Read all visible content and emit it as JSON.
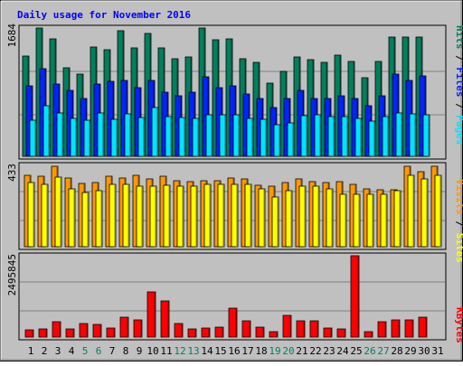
{
  "chart_data": {
    "type": "bar",
    "title": "Daily usage for November 2016",
    "days": [
      "1",
      "2",
      "3",
      "4",
      "5",
      "6",
      "7",
      "8",
      "9",
      "10",
      "11",
      "12",
      "13",
      "14",
      "15",
      "16",
      "17",
      "18",
      "19",
      "20",
      "21",
      "22",
      "23",
      "24",
      "25",
      "26",
      "27",
      "28",
      "29",
      "30",
      "31"
    ],
    "weekend_days": [
      "5",
      "6",
      "12",
      "13",
      "19",
      "20",
      "26",
      "27"
    ],
    "panels": [
      {
        "id": "top",
        "ytick_label": "1684",
        "ymax": 1684,
        "series": [
          {
            "name": "Hits",
            "color": "#00805C",
            "values": [
              1320,
              1684,
              1540,
              1160,
              1080,
              1440,
              1400,
              1650,
              1420,
              1610,
              1420,
              1280,
              1300,
              1680,
              1530,
              1540,
              1280,
              1230,
              960,
              1110,
              1300,
              1270,
              1230,
              1330,
              1250,
              1030,
              1250,
              1570,
              1560,
              1560,
              null
            ]
          },
          {
            "name": "Files",
            "color": "#0024FF",
            "values": [
              920,
              1150,
              950,
              860,
              760,
              950,
              980,
              1000,
              900,
              1000,
              840,
              800,
              840,
              1040,
              900,
              920,
              820,
              760,
              640,
              760,
              870,
              760,
              760,
              800,
              760,
              660,
              800,
              1080,
              1000,
              1060,
              null
            ]
          },
          {
            "name": "Pages",
            "color": "#00E4FF",
            "values": [
              480,
              660,
              570,
              500,
              470,
              570,
              490,
              560,
              510,
              640,
              520,
              510,
              500,
              550,
              550,
              540,
              500,
              490,
              410,
              440,
              530,
              550,
              520,
              520,
              500,
              460,
              520,
              570,
              560,
              540,
              null
            ]
          }
        ]
      },
      {
        "id": "middle",
        "ytick_label": "433",
        "ymax": 433,
        "series": [
          {
            "name": "Visits",
            "color": "#FF9900",
            "values": [
              380,
              375,
              430,
              365,
              335,
              340,
              375,
              365,
              380,
              360,
              375,
              350,
              345,
              350,
              350,
              365,
              360,
              325,
              320,
              340,
              360,
              345,
              340,
              345,
              330,
              310,
              305,
              303,
              430,
              400,
              430
            ]
          },
          {
            "name": "Sites",
            "color": "#FFFF00",
            "values": [
              340,
              330,
              370,
              310,
              290,
              300,
              330,
              330,
              320,
              320,
              325,
              320,
              320,
              330,
              330,
              330,
              330,
              310,
              265,
              300,
              320,
              320,
              310,
              280,
              280,
              280,
              280,
              300,
              380,
              360,
              380
            ]
          }
        ]
      },
      {
        "id": "bottom",
        "ytick_label": "2495845",
        "ymax": 2495845,
        "series": [
          {
            "name": "KBytes",
            "color": "#FF0000",
            "values": [
              210000,
              260000,
              470000,
              250000,
              420000,
              390000,
              280000,
              620000,
              520000,
              1400000,
              1100000,
              420000,
              250000,
              280000,
              310000,
              880000,
              490000,
              300000,
              180000,
              660000,
              490000,
              490000,
              290000,
              240000,
              2495845,
              180000,
              460000,
              520000,
              520000,
              620000,
              null
            ]
          }
        ]
      }
    ]
  }
}
